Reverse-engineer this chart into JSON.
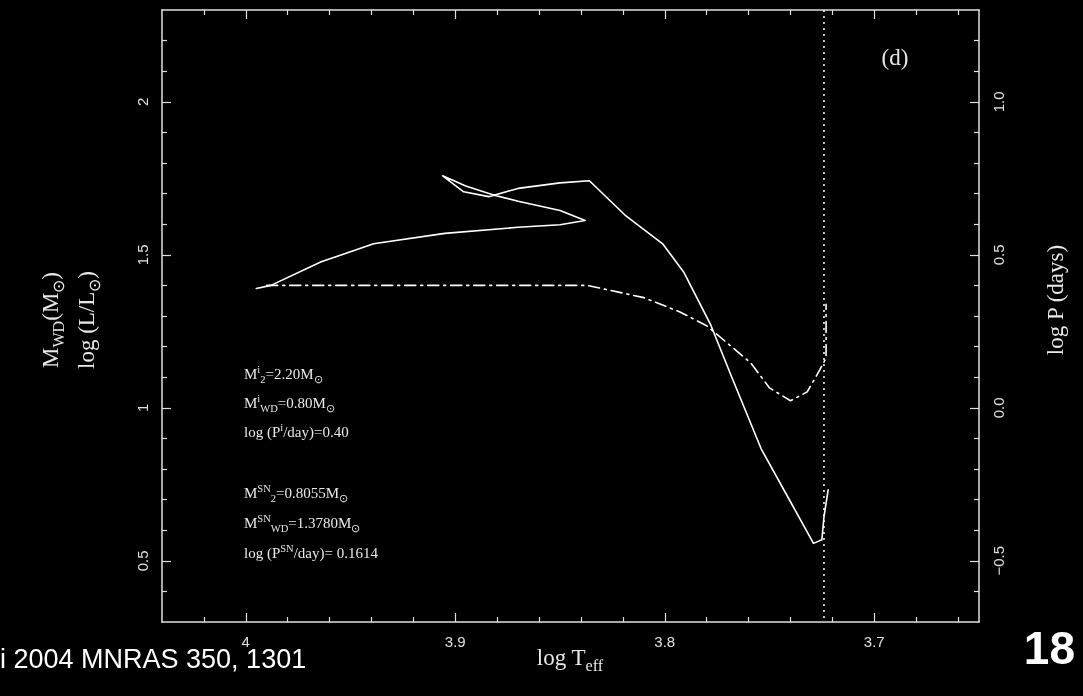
{
  "chart_data": {
    "type": "line",
    "xlabel": "log T$_{eff}$",
    "ylabel": "M$_{WD}$(M$_{⊙}$)\nlog (L/L$_{⊙}$)",
    "y2label": "log P (days)",
    "xlim": [
      4.04,
      3.65
    ],
    "xticks": [
      {
        "value": 4.02,
        "label": null
      },
      4,
      {
        "value": 3.98,
        "label": null
      },
      {
        "value": 3.96,
        "label": null
      },
      {
        "value": 3.94,
        "label": null
      },
      {
        "value": 3.92,
        "label": null
      },
      3.9,
      {
        "value": 3.88,
        "label": null
      },
      {
        "value": 3.86,
        "label": null
      },
      {
        "value": 3.84,
        "label": null
      },
      {
        "value": 3.82,
        "label": null
      },
      3.8,
      {
        "value": 3.78,
        "label": null
      },
      {
        "value": 3.76,
        "label": null
      },
      {
        "value": 3.74,
        "label": null
      },
      {
        "value": 3.72,
        "label": null
      },
      3.7,
      {
        "value": 3.68,
        "label": null
      },
      {
        "value": 3.66,
        "label": null
      }
    ],
    "ylim": [
      0.3,
      2.3
    ],
    "yticks": [
      {
        "value": 0.4,
        "label": null
      },
      0.5,
      {
        "value": 0.6,
        "label": null
      },
      {
        "value": 0.7,
        "label": null
      },
      {
        "value": 0.8,
        "label": null
      },
      {
        "value": 0.9,
        "label": null
      },
      1,
      {
        "value": 1.1,
        "label": null
      },
      {
        "value": 1.2,
        "label": null
      },
      {
        "value": 1.3,
        "label": null
      },
      {
        "value": 1.4,
        "label": null
      },
      1.5,
      {
        "value": 1.6,
        "label": null
      },
      {
        "value": 1.7,
        "label": null
      },
      {
        "value": 1.8,
        "label": null
      },
      {
        "value": 1.9,
        "label": null
      },
      2,
      {
        "value": 2.1,
        "label": null
      },
      {
        "value": 2.2,
        "label": null
      }
    ],
    "y2lim": [
      -0.7,
      1.3
    ],
    "y2ticks": [
      {
        "value": -0.6,
        "label": null
      },
      {
        "value": -0.5,
        "label": "−0.5"
      },
      {
        "value": -0.4,
        "label": null
      },
      {
        "value": -0.3,
        "label": null
      },
      {
        "value": -0.2,
        "label": null
      },
      {
        "value": -0.1,
        "label": null
      },
      {
        "value": 0,
        "label": "0.0"
      },
      {
        "value": 0.1,
        "label": null
      },
      {
        "value": 0.2,
        "label": null
      },
      {
        "value": 0.3,
        "label": null
      },
      {
        "value": 0.4,
        "label": null
      },
      0.5,
      {
        "value": 0.6,
        "label": null
      },
      {
        "value": 0.7,
        "label": null
      },
      {
        "value": 0.8,
        "label": null
      },
      {
        "value": 0.9,
        "label": null
      },
      {
        "value": 1,
        "label": "1.0"
      },
      {
        "value": 1.1,
        "label": null
      },
      {
        "value": 1.2,
        "label": null
      }
    ],
    "series": [
      {
        "color": "#ffffff",
        "line_style": "solid",
        "x": [
          3.995,
          3.988,
          3.964,
          3.939,
          3.905,
          3.87,
          3.85,
          3.838,
          3.85,
          3.87,
          3.881,
          3.895,
          3.906,
          3.896,
          3.884,
          3.87,
          3.85,
          3.836,
          3.819,
          3.801,
          3.791,
          3.778,
          3.768,
          3.754,
          3.74,
          3.729,
          3.725,
          3.724,
          3.722
        ],
        "values": [
          1.39,
          1.4,
          1.477,
          1.536,
          1.57,
          1.59,
          1.598,
          1.612,
          1.645,
          1.675,
          1.694,
          1.725,
          1.758,
          1.706,
          1.69,
          1.717,
          1.735,
          1.742,
          1.63,
          1.536,
          1.444,
          1.27,
          1.1,
          0.866,
          0.693,
          0.557,
          0.569,
          0.644,
          0.732
        ]
      },
      {
        "color": "#ffffff",
        "line_style": "dashed",
        "axis": "y2",
        "x": [
          3.99,
          3.837,
          3.81,
          3.793,
          3.78,
          3.768,
          3.759,
          3.75,
          3.74,
          3.732,
          3.726,
          3.723,
          3.723
        ],
        "values": [
          0.4,
          0.4,
          0.36,
          0.314,
          0.268,
          0.199,
          0.147,
          0.065,
          0.023,
          0.052,
          0.124,
          0.163,
          0.338
        ]
      }
    ],
    "ref_lines": [
      {
        "axis": "x",
        "value": 3.724,
        "color": "#ffffff",
        "line_style": "dotted"
      }
    ],
    "annotations": [
      "M$^{i}$$_{2}$=2.20M$_{⊙}$",
      "M$^{i}$$_{WD}$=0.80M$_{⊙}$",
      "log (P$^{i}$/day)=0.40",
      "M$^{SN}$$_{2}$=0.8055M$_{⊙}$",
      "M$^{SN}$$_{WD}$=1.3780M$_{⊙}$",
      "log (P$^{SN}$/day)= 0.1614",
      "(d)",
      "i 2004 MNRAS 350, 1301",
      "18"
    ]
  }
}
